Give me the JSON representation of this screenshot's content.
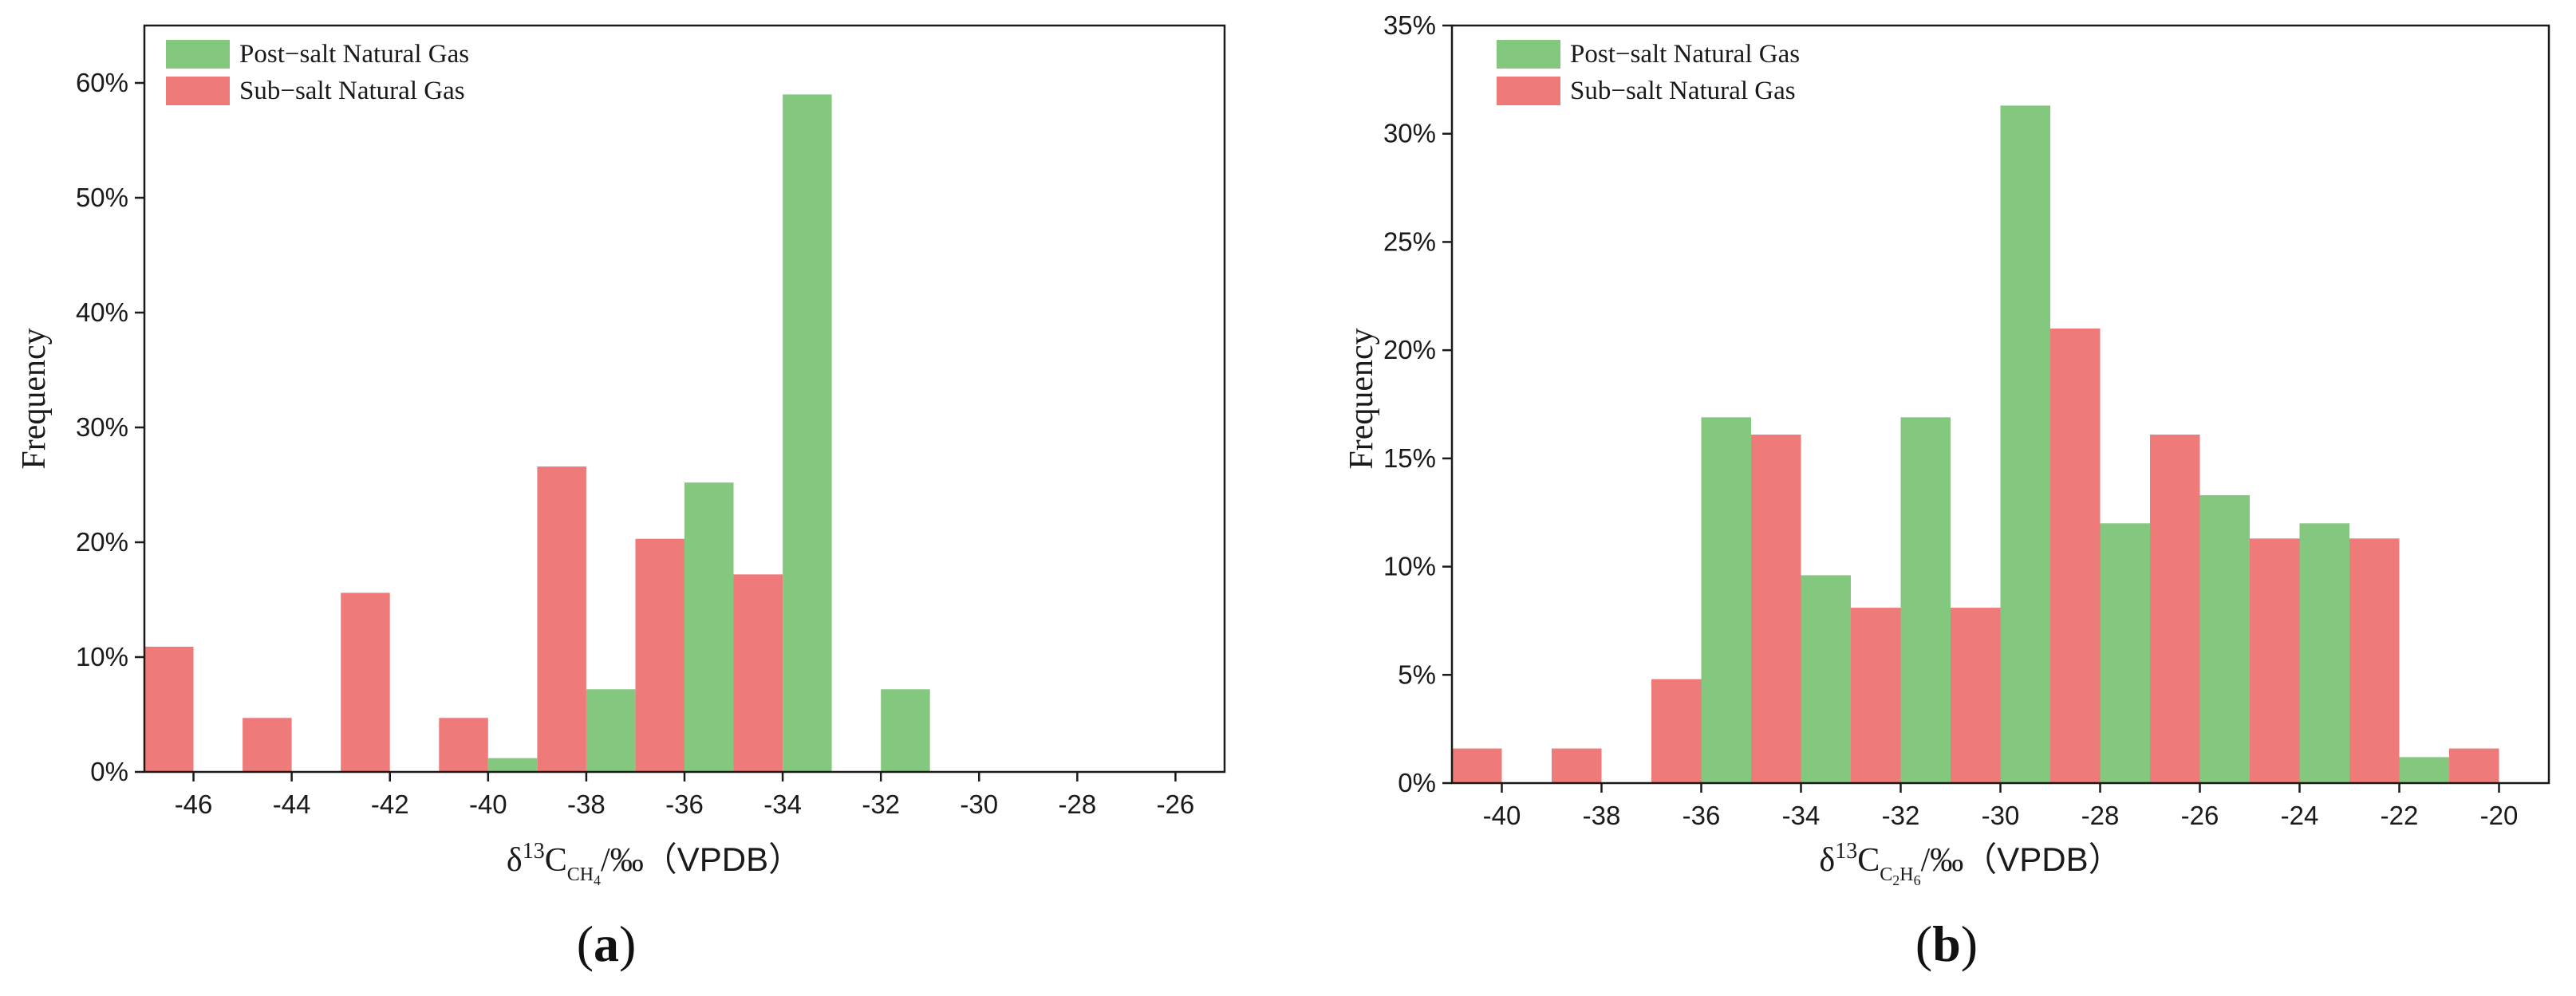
{
  "colors": {
    "post_salt": "#84c77f",
    "sub_salt": "#ee7a7a",
    "axis": "#1a1a1a"
  },
  "chart_data": [
    {
      "id": "a",
      "type": "bar",
      "panel_label": {
        "open": "(",
        "letter": "a",
        "close": ")"
      },
      "ylabel": "Frequency",
      "xlabel": {
        "delta": "δ",
        "sup": "13",
        "base": "C",
        "sub1": "CH",
        "sub2": "4",
        "tail": "/‰",
        "paren": "（VPDB）"
      },
      "xlim": [
        -47,
        -25
      ],
      "ylim": [
        0,
        0.65
      ],
      "xticks": [
        -46,
        -44,
        -42,
        -40,
        -38,
        -36,
        -34,
        -32,
        -30,
        -28,
        -26
      ],
      "xtick_labels": [
        "-46",
        "-44",
        "-42",
        "-40",
        "-38",
        "-36",
        "-34",
        "-32",
        "-30",
        "-28",
        "-26"
      ],
      "yticks": [
        0,
        0.1,
        0.2,
        0.3,
        0.4,
        0.5,
        0.6
      ],
      "ytick_labels": [
        "0%",
        "10%",
        "20%",
        "30%",
        "40%",
        "50%",
        "60%"
      ],
      "bin_width": 2,
      "legend": {
        "position": "top-left",
        "entries": [
          "Post−salt Natural Gas",
          "Sub−salt Natural Gas"
        ]
      },
      "series": [
        {
          "name": "Post−salt Natural Gas",
          "key": "post_salt",
          "side": "right",
          "x": [
            -40,
            -38,
            -36,
            -34,
            -32
          ],
          "values": [
            0.012,
            0.072,
            0.252,
            0.59,
            0.072
          ]
        },
        {
          "name": "Sub−salt Natural Gas",
          "key": "sub_salt",
          "side": "left",
          "x": [
            -46,
            -44,
            -42,
            -40,
            -38,
            -36,
            -34
          ],
          "values": [
            0.109,
            0.047,
            0.156,
            0.047,
            0.266,
            0.203,
            0.172
          ]
        }
      ]
    },
    {
      "id": "b",
      "type": "bar",
      "panel_label": {
        "open": "(",
        "letter": "b",
        "close": ")"
      },
      "ylabel": "Frequency",
      "xlabel": {
        "delta": "δ",
        "sup": "13",
        "base": "C",
        "sub1": "C",
        "sub2": "2",
        "sub3": "H",
        "sub4": "6",
        "tail": "/‰",
        "paren": "（VPDB）"
      },
      "xlim": [
        -41,
        -19
      ],
      "ylim": [
        0,
        0.35
      ],
      "xticks": [
        -40,
        -38,
        -36,
        -34,
        -32,
        -30,
        -28,
        -26,
        -24,
        -22,
        -20
      ],
      "xtick_labels": [
        "-40",
        "-38",
        "-36",
        "-34",
        "-32",
        "-30",
        "-28",
        "-26",
        "-24",
        "-22",
        "-20"
      ],
      "yticks": [
        0,
        0.05,
        0.1,
        0.15,
        0.2,
        0.25,
        0.3,
        0.35
      ],
      "ytick_labels": [
        "0%",
        "5%",
        "10%",
        "15%",
        "20%",
        "25%",
        "30%",
        "35%"
      ],
      "bin_width": 2,
      "legend": {
        "position": "top-left",
        "entries": [
          "Post−salt Natural Gas",
          "Sub−salt Natural Gas"
        ]
      },
      "series": [
        {
          "name": "Post−salt Natural Gas",
          "key": "post_salt",
          "side": "right",
          "x": [
            -36,
            -34,
            -32,
            -30,
            -28,
            -26,
            -24,
            -22
          ],
          "values": [
            0.169,
            0.096,
            0.169,
            0.313,
            0.12,
            0.133,
            0.12,
            0.012
          ]
        },
        {
          "name": "Sub−salt Natural Gas",
          "key": "sub_salt",
          "side": "left",
          "x": [
            -40,
            -38,
            -36,
            -34,
            -32,
            -30,
            -28,
            -26,
            -24,
            -22,
            -20
          ],
          "values": [
            0.016,
            0.016,
            0.048,
            0.161,
            0.081,
            0.081,
            0.21,
            0.161,
            0.113,
            0.113,
            0.016
          ]
        }
      ]
    }
  ]
}
